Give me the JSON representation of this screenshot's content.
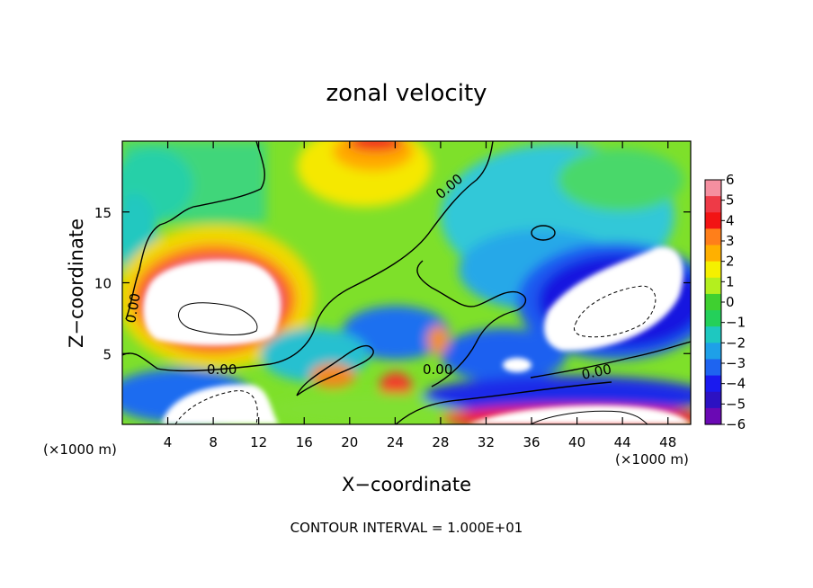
{
  "chart_data": {
    "type": "heatmap",
    "title": "zonal velocity",
    "xlabel": "X−coordinate",
    "ylabel": "Z−coordinate",
    "x_unit": "(×1000 m)",
    "x_unit_right": "(×1000 m)",
    "footer": "CONTOUR INTERVAL = 1.000E+01",
    "xlim": [
      0,
      50
    ],
    "ylim": [
      0,
      20
    ],
    "x_ticks": [
      "4",
      "8",
      "12",
      "16",
      "20",
      "24",
      "28",
      "32",
      "36",
      "40",
      "44",
      "48"
    ],
    "x_tick_values": [
      4,
      8,
      12,
      16,
      20,
      24,
      28,
      32,
      36,
      40,
      44,
      48
    ],
    "y_ticks": [
      "5",
      "10",
      "15"
    ],
    "y_tick_values": [
      5,
      10,
      15
    ],
    "colorbar": {
      "min": -6,
      "max": 6,
      "labels": [
        "6",
        "5",
        "4",
        "3",
        "2",
        "1",
        "0",
        "−1",
        "−2",
        "−3",
        "−4",
        "−5",
        "−6"
      ],
      "colors": [
        "#f58fa0",
        "#ee3a47",
        "#f21414",
        "#ff7f1a",
        "#ffb000",
        "#f5f000",
        "#b4ef1e",
        "#3fd030",
        "#24d05a",
        "#1ec8c0",
        "#1ea0e8",
        "#1e64f0",
        "#1a1aef",
        "#2c12c2",
        "#6a09b4"
      ]
    },
    "contour_labels": [
      "0.00",
      "0.00",
      "0.00",
      "0.00",
      "0.00"
    ]
  },
  "colors": {
    "saturated": "#ffffff",
    "contour": "#000000"
  }
}
